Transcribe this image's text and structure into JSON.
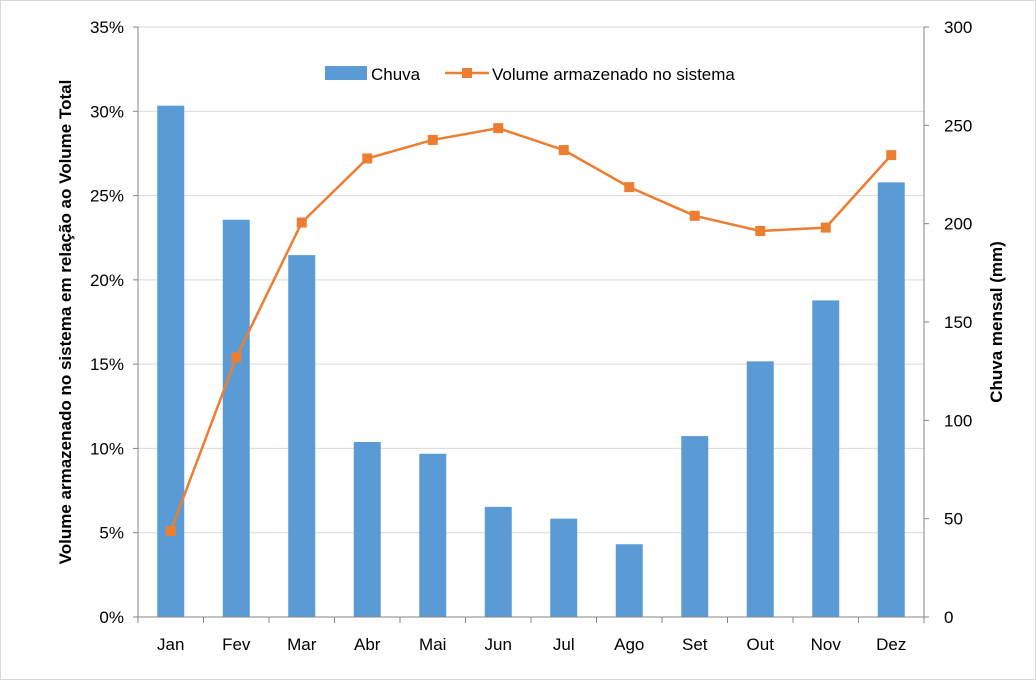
{
  "chart_data": {
    "type": "bar",
    "categories": [
      "Jan",
      "Fev",
      "Mar",
      "Abr",
      "Mai",
      "Jun",
      "Jul",
      "Ago",
      "Set",
      "Out",
      "Nov",
      "Dez"
    ],
    "series": [
      {
        "name": "Chuva",
        "type": "bar",
        "axis": "right",
        "color": "#5b9bd5",
        "values": [
          260,
          202,
          184,
          89,
          83,
          56,
          50,
          37,
          92,
          130,
          161,
          221
        ]
      },
      {
        "name": "Volume armazenado no sistema",
        "type": "line",
        "axis": "left",
        "color": "#ed7d31",
        "marker": "square",
        "values": [
          0.051,
          0.154,
          0.234,
          0.272,
          0.283,
          0.29,
          0.277,
          0.255,
          0.238,
          0.229,
          0.231,
          0.274
        ]
      }
    ],
    "ylabel": "Volume armazenado no sistema em relação ao Volume Total",
    "y2label": "Chuva mensal (mm)",
    "ylim": [
      0,
      0.35
    ],
    "y2lim": [
      0,
      300
    ],
    "yticks": [
      "0%",
      "5%",
      "10%",
      "15%",
      "20%",
      "25%",
      "30%",
      "35%"
    ],
    "y2ticks": [
      "0",
      "50",
      "100",
      "150",
      "200",
      "250",
      "300"
    ],
    "grid": true,
    "legend": "top-center"
  }
}
